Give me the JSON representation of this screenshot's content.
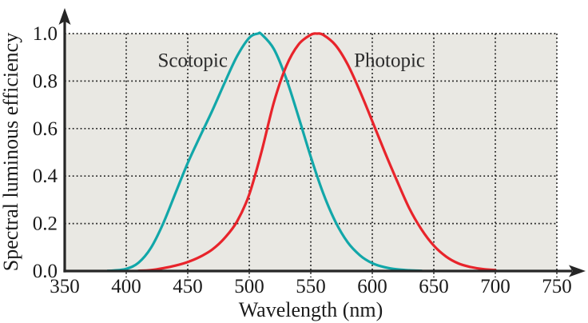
{
  "chart_data": {
    "type": "line",
    "title": "",
    "xlabel": "Wavelength (nm)",
    "ylabel": "Spectral luminous efficiency",
    "xlim": [
      350,
      750
    ],
    "ylim": [
      0.0,
      1.0
    ],
    "x_ticks": [
      "350",
      "400",
      "450",
      "500",
      "550",
      "600",
      "650",
      "700",
      "750"
    ],
    "y_ticks": [
      "0.0",
      "0.2",
      "0.4",
      "0.6",
      "0.8",
      "1.0"
    ],
    "grid": "dotted",
    "legend_position": "inline-annotations",
    "colors": {
      "plot_background": "#e9e8e3",
      "axis": "#262626",
      "grid": "#1f1f1f",
      "text": "#1a1a1a",
      "scotopic": "#12a7a9",
      "photopic": "#e8242b"
    },
    "annotations": [
      {
        "text": "Scotopic",
        "x": 454,
        "y": 0.86,
        "series": "scotopic"
      },
      {
        "text": "Photopic",
        "x": 614,
        "y": 0.86,
        "series": "photopic"
      }
    ],
    "series": [
      {
        "name": "Scotopic",
        "color_key": "scotopic",
        "peak_nm": 507,
        "points": [
          [
            385,
            0.001
          ],
          [
            390,
            0.002
          ],
          [
            400,
            0.009
          ],
          [
            410,
            0.035
          ],
          [
            420,
            0.097
          ],
          [
            430,
            0.2
          ],
          [
            440,
            0.328
          ],
          [
            450,
            0.455
          ],
          [
            460,
            0.567
          ],
          [
            470,
            0.676
          ],
          [
            480,
            0.793
          ],
          [
            490,
            0.904
          ],
          [
            500,
            0.982
          ],
          [
            507,
            1.0
          ],
          [
            510,
            0.997
          ],
          [
            520,
            0.935
          ],
          [
            530,
            0.811
          ],
          [
            540,
            0.65
          ],
          [
            550,
            0.481
          ],
          [
            560,
            0.329
          ],
          [
            570,
            0.208
          ],
          [
            580,
            0.121
          ],
          [
            590,
            0.066
          ],
          [
            600,
            0.033
          ],
          [
            610,
            0.016
          ],
          [
            620,
            0.007
          ],
          [
            630,
            0.003
          ],
          [
            640,
            0.001
          ]
        ]
      },
      {
        "name": "Photopic",
        "color_key": "photopic",
        "peak_nm": 555,
        "points": [
          [
            410,
            0.001
          ],
          [
            420,
            0.004
          ],
          [
            430,
            0.012
          ],
          [
            440,
            0.023
          ],
          [
            450,
            0.038
          ],
          [
            460,
            0.06
          ],
          [
            470,
            0.091
          ],
          [
            480,
            0.139
          ],
          [
            490,
            0.208
          ],
          [
            500,
            0.323
          ],
          [
            510,
            0.503
          ],
          [
            520,
            0.71
          ],
          [
            530,
            0.862
          ],
          [
            540,
            0.954
          ],
          [
            550,
            0.995
          ],
          [
            555,
            1.0
          ],
          [
            560,
            0.995
          ],
          [
            570,
            0.952
          ],
          [
            580,
            0.87
          ],
          [
            590,
            0.757
          ],
          [
            600,
            0.631
          ],
          [
            610,
            0.503
          ],
          [
            620,
            0.381
          ],
          [
            630,
            0.265
          ],
          [
            640,
            0.175
          ],
          [
            650,
            0.107
          ],
          [
            660,
            0.061
          ],
          [
            670,
            0.032
          ],
          [
            680,
            0.017
          ],
          [
            690,
            0.008
          ],
          [
            700,
            0.004
          ]
        ]
      }
    ]
  }
}
